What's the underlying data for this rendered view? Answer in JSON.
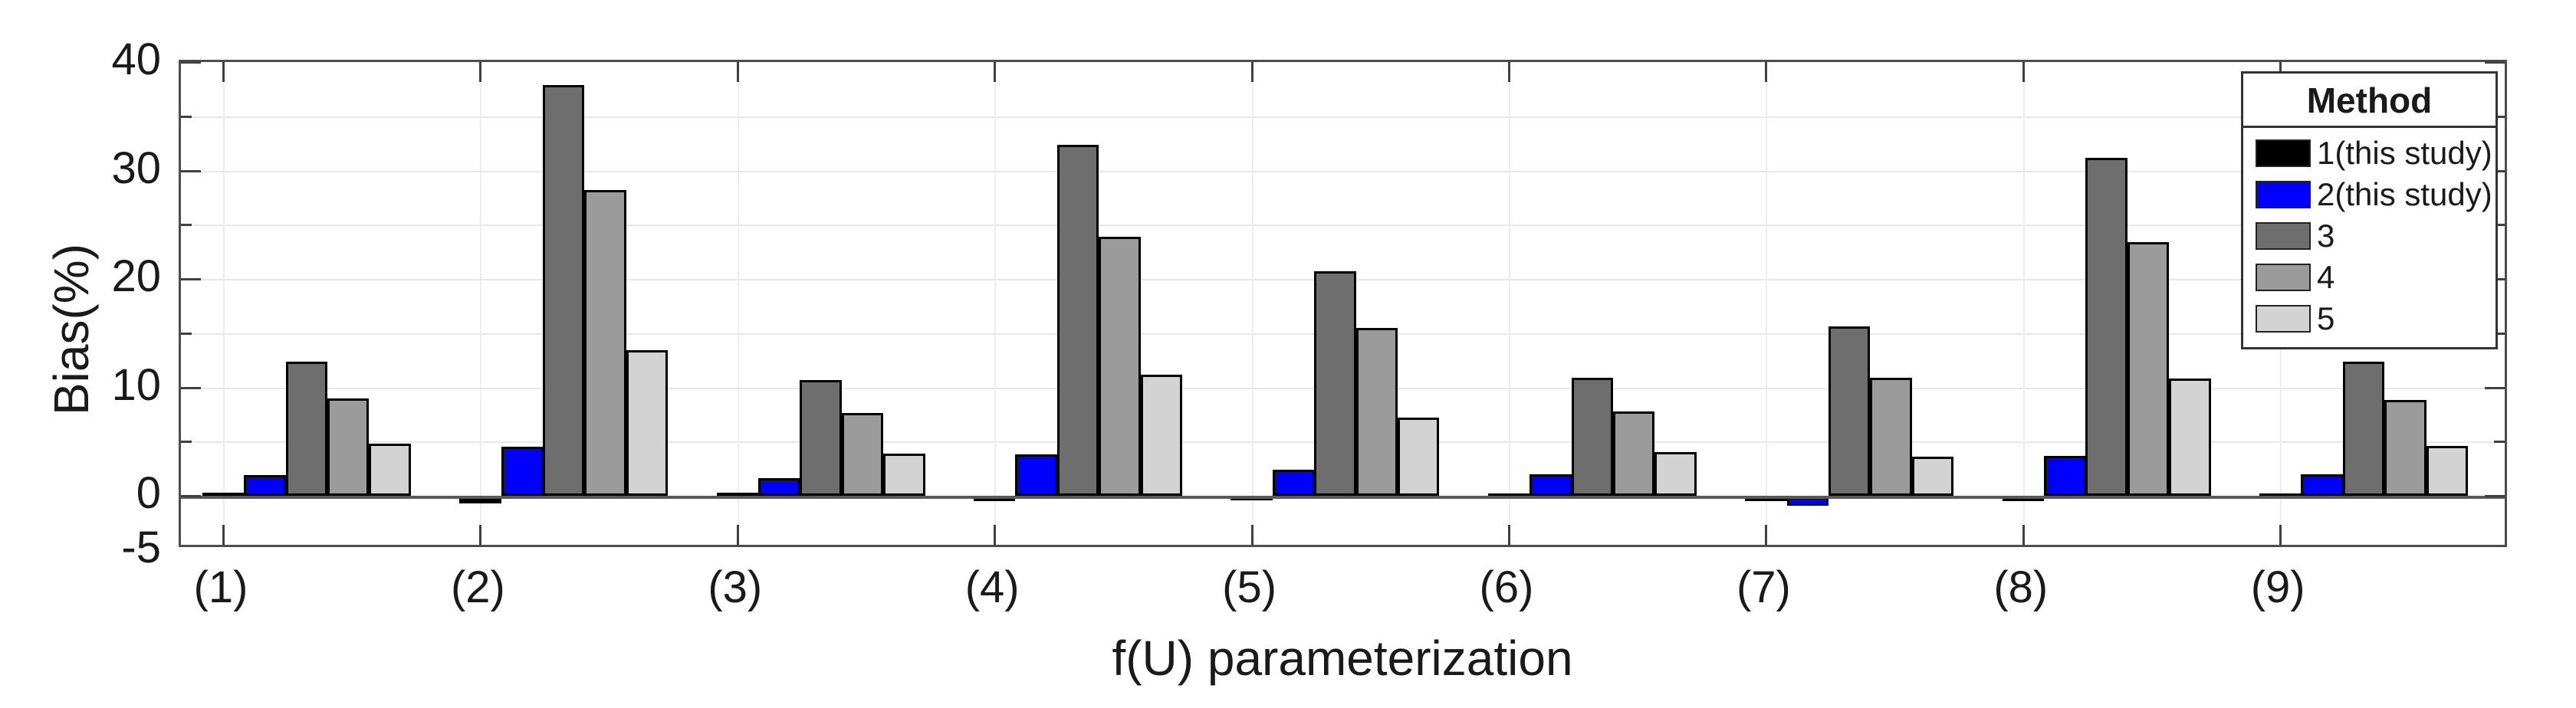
{
  "chart_data": {
    "type": "bar",
    "title": "",
    "xlabel": "f(U) parameterization",
    "ylabel": "Bias(%)",
    "categories": [
      "(1)",
      "(2)",
      "(3)",
      "(4)",
      "(5)",
      "(6)",
      "(7)",
      "(8)",
      "(9)"
    ],
    "series": [
      {
        "name": "1(this study)",
        "color": "#000000",
        "values": [
          0.3,
          -0.7,
          0.3,
          -0.5,
          -0.4,
          0.2,
          -0.5,
          -0.5,
          0.2
        ]
      },
      {
        "name": "2(this study)",
        "color": "#0000ff",
        "values": [
          1.9,
          4.5,
          1.6,
          3.8,
          2.4,
          2.0,
          -0.9,
          3.7,
          2.0
        ]
      },
      {
        "name": "3",
        "color": "#6e6e6e",
        "values": [
          12.4,
          37.9,
          10.7,
          32.4,
          20.7,
          10.9,
          15.6,
          31.2,
          12.4
        ]
      },
      {
        "name": "4",
        "color": "#9b9b9b",
        "values": [
          9.0,
          28.2,
          7.6,
          23.9,
          15.5,
          7.8,
          10.9,
          23.4,
          8.8
        ]
      },
      {
        "name": "5",
        "color": "#d3d3d3",
        "values": [
          4.8,
          13.4,
          3.9,
          11.2,
          7.2,
          4.0,
          3.6,
          10.8,
          4.6
        ]
      }
    ],
    "ylim": [
      -5,
      40
    ],
    "ytick_labels": [
      {
        "v": 40,
        "label": "40"
      },
      {
        "v": 30,
        "label": "30"
      },
      {
        "v": 20,
        "label": "20"
      },
      {
        "v": 10,
        "label": "10"
      },
      {
        "v": 0,
        "label": "0"
      },
      {
        "v": -5,
        "label": "-5"
      }
    ],
    "ytick_minor": [
      5,
      15,
      25,
      35
    ],
    "ytick_major": [
      10,
      20,
      30,
      40
    ],
    "grid": true,
    "legend_title": "Method",
    "legend_position": "top-right"
  }
}
